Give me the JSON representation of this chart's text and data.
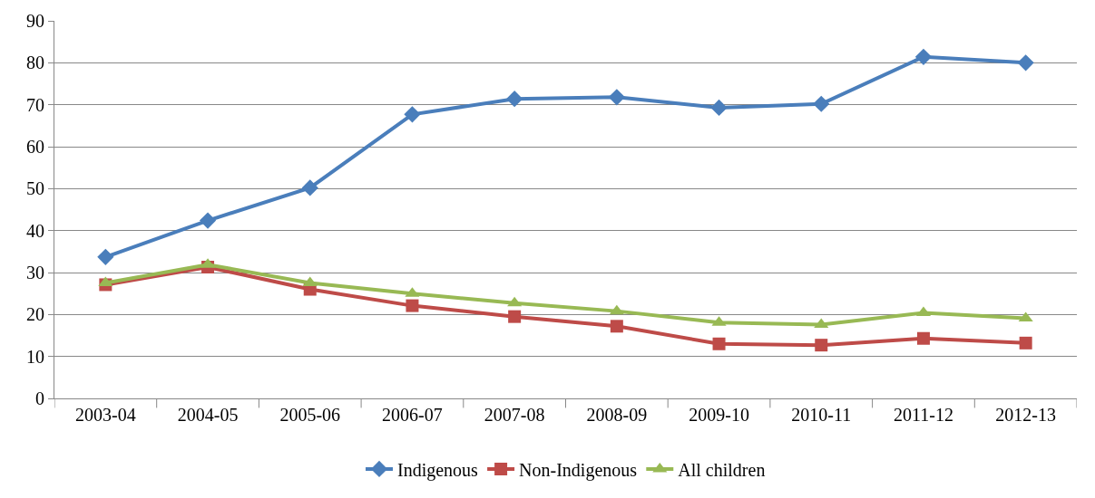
{
  "chart_data": {
    "type": "line",
    "categories": [
      "2003-04",
      "2004-05",
      "2005-06",
      "2006-07",
      "2007-08",
      "2008-09",
      "2009-10",
      "2010-11",
      "2011-12",
      "2012-13"
    ],
    "series": [
      {
        "name": "Indigenous",
        "color": "#4a7ebb",
        "marker": "diamond",
        "values": [
          33.7,
          42.4,
          50.2,
          67.7,
          71.4,
          71.8,
          69.3,
          70.2,
          81.4,
          80.0
        ]
      },
      {
        "name": "Non-Indigenous",
        "color": "#be4b48",
        "marker": "square",
        "values": [
          27.1,
          31.3,
          26.0,
          22.1,
          19.5,
          17.2,
          13.0,
          12.7,
          14.3,
          13.2
        ]
      },
      {
        "name": "All children",
        "color": "#98b954",
        "marker": "triangle",
        "values": [
          27.5,
          31.9,
          27.5,
          25.0,
          22.7,
          20.8,
          18.1,
          17.6,
          20.4,
          19.1
        ]
      }
    ],
    "ylim": [
      0,
      90
    ],
    "yticks": [
      0,
      10,
      20,
      30,
      40,
      50,
      60,
      70,
      80,
      90
    ],
    "grid": "y",
    "legend": "bottom",
    "line_style": "solid"
  }
}
